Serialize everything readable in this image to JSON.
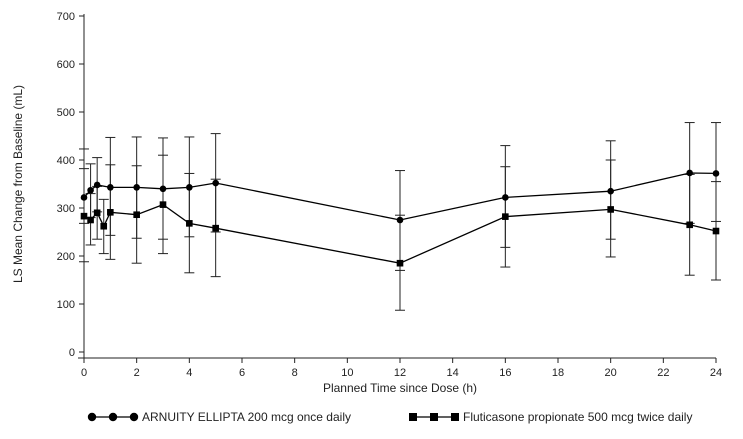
{
  "chart_data": {
    "type": "line",
    "title": "",
    "xlabel": "Planned Time since Dose (h)",
    "ylabel": "LS Mean Change from Baseline (mL)",
    "xlim": [
      0,
      24
    ],
    "ylim": [
      0,
      700
    ],
    "xticks": [
      0,
      2,
      4,
      6,
      8,
      10,
      12,
      14,
      16,
      18,
      20,
      22,
      24
    ],
    "yticks": [
      0,
      100,
      200,
      300,
      400,
      500,
      600,
      700
    ],
    "grid": false,
    "legend_position": "bottom",
    "error_bars": true,
    "series": [
      {
        "name": "ARNUITY ELLIPTA 200 mcg once daily",
        "marker": "circle",
        "color": "#000000",
        "points": [
          {
            "x": 0.0,
            "y": 322,
            "low": 268,
            "high": 382
          },
          {
            "x": 0.25,
            "y": 337,
            "low": 280,
            "high": 392
          },
          {
            "x": 0.5,
            "y": 348,
            "low": 292,
            "high": 405
          },
          {
            "x": 1.0,
            "y": 343,
            "low": 243,
            "high": 447
          },
          {
            "x": 2.0,
            "y": 343,
            "low": 237,
            "high": 448
          },
          {
            "x": 3.0,
            "y": 340,
            "low": 235,
            "high": 446
          },
          {
            "x": 4.0,
            "y": 343,
            "low": 240,
            "high": 448
          },
          {
            "x": 5.0,
            "y": 352,
            "low": 250,
            "high": 455
          },
          {
            "x": 12.0,
            "y": 275,
            "low": 170,
            "high": 378
          },
          {
            "x": 16.0,
            "y": 322,
            "low": 218,
            "high": 430
          },
          {
            "x": 20.0,
            "y": 335,
            "low": 235,
            "high": 440
          },
          {
            "x": 23.0,
            "y": 373,
            "low": 268,
            "high": 478
          },
          {
            "x": 24.0,
            "y": 372,
            "low": 272,
            "high": 478
          }
        ]
      },
      {
        "name": "Fluticasone propionate 500 mcg twice daily",
        "marker": "square",
        "color": "#000000",
        "points": [
          {
            "x": 0.0,
            "y": 283,
            "low": 188,
            "high": 423
          },
          {
            "x": 0.25,
            "y": 275,
            "low": 223,
            "high": 330
          },
          {
            "x": 0.5,
            "y": 290,
            "low": 235,
            "high": 345
          },
          {
            "x": 0.75,
            "y": 262,
            "low": 205,
            "high": 318
          },
          {
            "x": 1.0,
            "y": 291,
            "low": 193,
            "high": 390
          },
          {
            "x": 2.0,
            "y": 286,
            "low": 185,
            "high": 388
          },
          {
            "x": 3.0,
            "y": 307,
            "low": 205,
            "high": 410
          },
          {
            "x": 4.0,
            "y": 268,
            "low": 165,
            "high": 372
          },
          {
            "x": 5.0,
            "y": 258,
            "low": 157,
            "high": 360
          },
          {
            "x": 12.0,
            "y": 185,
            "low": 87,
            "high": 285
          },
          {
            "x": 16.0,
            "y": 282,
            "low": 177,
            "high": 386
          },
          {
            "x": 20.0,
            "y": 297,
            "low": 198,
            "high": 400
          },
          {
            "x": 23.0,
            "y": 265,
            "low": 160,
            "high": 370
          },
          {
            "x": 24.0,
            "y": 252,
            "low": 150,
            "high": 355
          }
        ]
      }
    ]
  }
}
